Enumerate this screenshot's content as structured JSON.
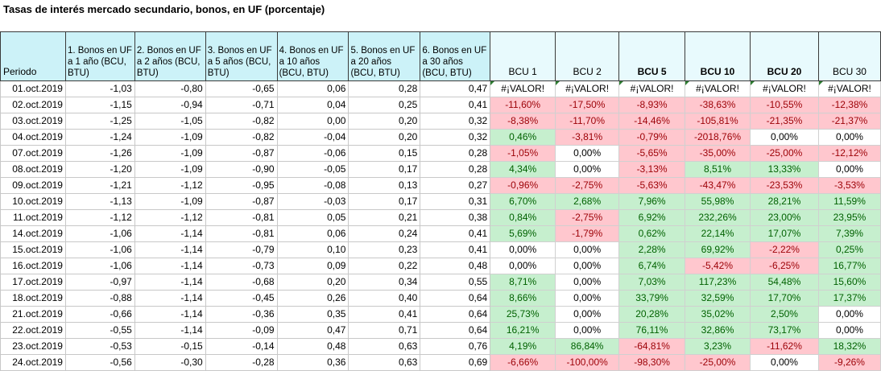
{
  "title": "Tasas de interés mercado secundario, bonos, en UF (porcentaje)",
  "columns": {
    "periodo": "Periodo",
    "bonos": [
      "1. Bonos en UF a 1 año (BCU, BTU)",
      "2. Bonos en UF a 2 años (BCU, BTU)",
      "3. Bonos en UF a 5 años (BCU, BTU)",
      "4. Bonos en UF a 10 años (BCU, BTU)",
      "5. Bonos en UF a 20 años (BCU, BTU)",
      "6. Bonos en UF a 30 años (BCU, BTU)"
    ],
    "bcu": [
      "BCU 1",
      "BCU 2",
      "BCU 5",
      "BCU 10",
      "BCU 20",
      "BCU 30"
    ]
  },
  "rows": [
    {
      "date": "01.oct.2019",
      "bonos": [
        "-1,03",
        "-0,80",
        "-0,65",
        "0,06",
        "0,28",
        "0,47"
      ],
      "bcu": [
        "#¡VALOR!",
        "#¡VALOR!",
        "#¡VALOR!",
        "#¡VALOR!",
        "#¡VALOR!",
        "#¡VALOR!"
      ]
    },
    {
      "date": "02.oct.2019",
      "bonos": [
        "-1,15",
        "-0,94",
        "-0,71",
        "0,04",
        "0,25",
        "0,41"
      ],
      "bcu": [
        "-11,60%",
        "-17,50%",
        "-8,93%",
        "-38,63%",
        "-10,55%",
        "-12,38%"
      ]
    },
    {
      "date": "03.oct.2019",
      "bonos": [
        "-1,25",
        "-1,05",
        "-0,82",
        "0,00",
        "0,20",
        "0,32"
      ],
      "bcu": [
        "-8,38%",
        "-11,70%",
        "-14,46%",
        "-105,81%",
        "-21,35%",
        "-21,37%"
      ]
    },
    {
      "date": "04.oct.2019",
      "bonos": [
        "-1,24",
        "-1,09",
        "-0,82",
        "-0,04",
        "0,20",
        "0,32"
      ],
      "bcu": [
        "0,46%",
        "-3,81%",
        "-0,79%",
        "-2018,76%",
        "0,00%",
        "0,00%"
      ]
    },
    {
      "date": "07.oct.2019",
      "bonos": [
        "-1,26",
        "-1,09",
        "-0,87",
        "-0,06",
        "0,15",
        "0,28"
      ],
      "bcu": [
        "-1,05%",
        "0,00%",
        "-5,65%",
        "-35,00%",
        "-25,00%",
        "-12,12%"
      ]
    },
    {
      "date": "08.oct.2019",
      "bonos": [
        "-1,20",
        "-1,09",
        "-0,90",
        "-0,05",
        "0,17",
        "0,28"
      ],
      "bcu": [
        "4,34%",
        "0,00%",
        "-3,13%",
        "8,51%",
        "13,33%",
        "0,00%"
      ]
    },
    {
      "date": "09.oct.2019",
      "bonos": [
        "-1,21",
        "-1,12",
        "-0,95",
        "-0,08",
        "0,13",
        "0,27"
      ],
      "bcu": [
        "-0,96%",
        "-2,75%",
        "-5,63%",
        "-43,47%",
        "-23,53%",
        "-3,53%"
      ]
    },
    {
      "date": "10.oct.2019",
      "bonos": [
        "-1,13",
        "-1,09",
        "-0,87",
        "-0,03",
        "0,17",
        "0,31"
      ],
      "bcu": [
        "6,70%",
        "2,68%",
        "7,96%",
        "55,98%",
        "28,21%",
        "11,59%"
      ]
    },
    {
      "date": "11.oct.2019",
      "bonos": [
        "-1,12",
        "-1,12",
        "-0,81",
        "0,05",
        "0,21",
        "0,38"
      ],
      "bcu": [
        "0,84%",
        "-2,75%",
        "6,92%",
        "232,26%",
        "23,00%",
        "23,95%"
      ]
    },
    {
      "date": "14.oct.2019",
      "bonos": [
        "-1,06",
        "-1,14",
        "-0,81",
        "0,06",
        "0,24",
        "0,41"
      ],
      "bcu": [
        "5,69%",
        "-1,79%",
        "0,62%",
        "22,14%",
        "17,07%",
        "7,39%"
      ]
    },
    {
      "date": "15.oct.2019",
      "bonos": [
        "-1,06",
        "-1,14",
        "-0,79",
        "0,10",
        "0,23",
        "0,41"
      ],
      "bcu": [
        "0,00%",
        "0,00%",
        "2,28%",
        "69,92%",
        "-2,22%",
        "0,25%"
      ]
    },
    {
      "date": "16.oct.2019",
      "bonos": [
        "-1,06",
        "-1,14",
        "-0,73",
        "0,09",
        "0,22",
        "0,48"
      ],
      "bcu": [
        "0,00%",
        "0,00%",
        "6,74%",
        "-5,42%",
        "-6,25%",
        "16,77%"
      ]
    },
    {
      "date": "17.oct.2019",
      "bonos": [
        "-0,97",
        "-1,14",
        "-0,68",
        "0,20",
        "0,34",
        "0,55"
      ],
      "bcu": [
        "8,71%",
        "0,00%",
        "7,03%",
        "117,23%",
        "54,48%",
        "15,60%"
      ]
    },
    {
      "date": "18.oct.2019",
      "bonos": [
        "-0,88",
        "-1,14",
        "-0,45",
        "0,26",
        "0,40",
        "0,64"
      ],
      "bcu": [
        "8,66%",
        "0,00%",
        "33,79%",
        "32,59%",
        "17,70%",
        "17,37%"
      ]
    },
    {
      "date": "21.oct.2019",
      "bonos": [
        "-0,66",
        "-1,14",
        "-0,36",
        "0,35",
        "0,41",
        "0,64"
      ],
      "bcu": [
        "25,73%",
        "0,00%",
        "20,28%",
        "35,02%",
        "2,50%",
        "0,00%"
      ]
    },
    {
      "date": "22.oct.2019",
      "bonos": [
        "-0,55",
        "-1,14",
        "-0,09",
        "0,47",
        "0,71",
        "0,64"
      ],
      "bcu": [
        "16,21%",
        "0,00%",
        "76,11%",
        "32,86%",
        "73,17%",
        "0,00%"
      ]
    },
    {
      "date": "23.oct.2019",
      "bonos": [
        "-0,53",
        "-0,15",
        "-0,14",
        "0,48",
        "0,63",
        "0,76"
      ],
      "bcu": [
        "4,19%",
        "86,84%",
        "-64,81%",
        "3,23%",
        "-11,62%",
        "18,32%"
      ]
    },
    {
      "date": "24.oct.2019",
      "bonos": [
        "-0,56",
        "-0,30",
        "-0,28",
        "0,36",
        "0,63",
        "0,69"
      ],
      "bcu": [
        "-6,66%",
        "-100,00%",
        "-98,30%",
        "-25,00%",
        "0,00%",
        "-9,26%"
      ]
    }
  ],
  "colors": {
    "positive_bg": "#c6efce",
    "positive_text": "#006100",
    "negative_bg": "#ffc7ce",
    "negative_text": "#9c0006",
    "header_bg": "#ccf2f8"
  }
}
